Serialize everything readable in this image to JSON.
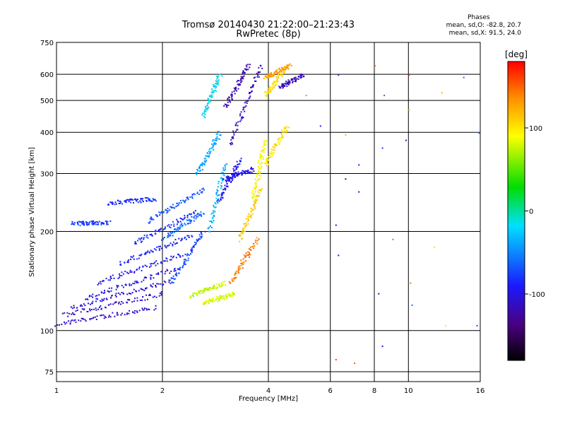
{
  "header": {
    "title_line1": "Tromsø 20140430 21:22:00–21:23:43",
    "title_line2": "RwPretec (8p)"
  },
  "phase_stats": {
    "title": "Phases",
    "line_o": "mean, sd,O:  -82.8, 20.7",
    "line_x": "mean, sd,X:  91.5, 24.0"
  },
  "colorbar": {
    "unit": "[deg]",
    "ticks": [
      {
        "value": 100,
        "label": "100"
      },
      {
        "value": 0,
        "label": "0"
      },
      {
        "value": -100,
        "label": "-100"
      }
    ],
    "range": [
      -180,
      180
    ]
  },
  "chart_data": {
    "type": "scatter",
    "title": "Tromsø 20140430 21:22:00–21:23:43",
    "subtitle": "RwPretec (8p)",
    "xlabel": "Frequency [MHz]",
    "ylabel": "Stationary phase Virtual Height [km]",
    "x_scale": "log",
    "y_scale": "log",
    "xlim": [
      1,
      16
    ],
    "ylim": [
      70,
      750
    ],
    "x_ticks": [
      1,
      2,
      4,
      6,
      8,
      10,
      16
    ],
    "x_tick_labels": [
      "1",
      "2",
      "4",
      "6",
      "8",
      "10",
      "16"
    ],
    "y_ticks": [
      75,
      100,
      200,
      300,
      400,
      500,
      600,
      750
    ],
    "y_tick_labels": [
      "75",
      "100",
      "200",
      "300",
      "400",
      "500",
      "600",
      "750"
    ],
    "grid": true,
    "series": [
      {
        "traces": [
          {
            "f": [
              1.0,
              1.9
            ],
            "h": [
              105,
              118
            ],
            "phase": -112
          },
          {
            "f": [
              1.05,
              2.0
            ],
            "h": [
              112,
              130
            ],
            "phase": -110
          },
          {
            "f": [
              1.1,
              2.1
            ],
            "h": [
              118,
              142
            ],
            "phase": -105
          },
          {
            "f": [
              1.2,
              2.2
            ],
            "h": [
              126,
              155
            ],
            "phase": -100
          },
          {
            "f": [
              1.3,
              2.3
            ],
            "h": [
              140,
              172
            ],
            "phase": -95
          },
          {
            "f": [
              1.5,
              2.4
            ],
            "h": [
              160,
              195
            ],
            "phase": -90
          },
          {
            "f": [
              1.65,
              2.5
            ],
            "h": [
              185,
              230
            ],
            "phase": -85
          },
          {
            "f": [
              1.8,
              2.6
            ],
            "h": [
              215,
              270
            ],
            "phase": -70
          },
          {
            "f": [
              1.1,
              1.4
            ],
            "h": [
              212,
              214
            ],
            "phase": -80
          },
          {
            "f": [
              1.4,
              1.9
            ],
            "h": [
              245,
              252
            ],
            "phase": -85
          },
          {
            "f": [
              2.0,
              2.6
            ],
            "h": [
              190,
              230
            ],
            "phase": -60
          },
          {
            "f": [
              2.1,
              2.6
            ],
            "h": [
              140,
              200
            ],
            "phase": -75
          },
          {
            "f": [
              2.5,
              2.9
            ],
            "h": [
              300,
              400
            ],
            "phase": -40
          },
          {
            "f": [
              2.6,
              2.9
            ],
            "h": [
              450,
              600
            ],
            "phase": -20
          },
          {
            "f": [
              2.7,
              3.0
            ],
            "h": [
              200,
              320
            ],
            "phase": -35
          },
          {
            "f": [
              2.9,
              3.3
            ],
            "h": [
              250,
              330
            ],
            "phase": -95
          },
          {
            "f": [
              3.0,
              3.5
            ],
            "h": [
              480,
              640
            ],
            "phase": -120
          },
          {
            "f": [
              3.1,
              3.8
            ],
            "h": [
              370,
              640
            ],
            "phase": -115
          },
          {
            "f": [
              3.0,
              3.6
            ],
            "h": [
              290,
              310
            ],
            "phase": -100
          },
          {
            "f": [
              2.4,
              3.0
            ],
            "h": [
              128,
              140
            ],
            "phase": 75
          },
          {
            "f": [
              2.6,
              3.2
            ],
            "h": [
              122,
              130
            ],
            "phase": 80
          },
          {
            "f": [
              3.1,
              3.7
            ],
            "h": [
              140,
              190
            ],
            "phase": 140
          },
          {
            "f": [
              3.3,
              3.8
            ],
            "h": [
              190,
              270
            ],
            "phase": 110
          },
          {
            "f": [
              3.6,
              3.9
            ],
            "h": [
              250,
              380
            ],
            "phase": 90
          },
          {
            "f": [
              3.9,
              4.5
            ],
            "h": [
              320,
              420
            ],
            "phase": 100
          },
          {
            "f": [
              3.9,
              4.5
            ],
            "h": [
              520,
              640
            ],
            "phase": 105
          },
          {
            "f": [
              4.3,
              5.0
            ],
            "h": [
              550,
              600
            ],
            "phase": -115
          },
          {
            "f": [
              3.9,
              4.6
            ],
            "h": [
              590,
              640
            ],
            "phase": 130
          }
        ],
        "points": [
          {
            "f": 6.2,
            "h": 82,
            "phase": 160
          },
          {
            "f": 6.3,
            "h": 170,
            "phase": -100
          },
          {
            "f": 6.2,
            "h": 210,
            "phase": -95
          },
          {
            "f": 6.3,
            "h": 600,
            "phase": -85
          },
          {
            "f": 6.6,
            "h": 395,
            "phase": 120
          },
          {
            "f": 6.6,
            "h": 290,
            "phase": -130
          },
          {
            "f": 7.2,
            "h": 320,
            "phase": -90
          },
          {
            "f": 7.2,
            "h": 265,
            "phase": -120
          },
          {
            "f": 7.0,
            "h": 80,
            "phase": 150
          },
          {
            "f": 8.0,
            "h": 640,
            "phase": 150
          },
          {
            "f": 8.2,
            "h": 130,
            "phase": -120
          },
          {
            "f": 8.4,
            "h": 90,
            "phase": -110
          },
          {
            "f": 8.4,
            "h": 360,
            "phase": -80
          },
          {
            "f": 8.5,
            "h": 520,
            "phase": -60
          },
          {
            "f": 9.0,
            "h": 190,
            "phase": 150
          },
          {
            "f": 10.0,
            "h": 600,
            "phase": 160
          },
          {
            "f": 10.0,
            "h": 470,
            "phase": 110
          },
          {
            "f": 9.8,
            "h": 380,
            "phase": -120
          },
          {
            "f": 10.1,
            "h": 140,
            "phase": 140
          },
          {
            "f": 10.2,
            "h": 120,
            "phase": -60
          },
          {
            "f": 11.8,
            "h": 180,
            "phase": 100
          },
          {
            "f": 12.4,
            "h": 530,
            "phase": 120
          },
          {
            "f": 12.7,
            "h": 104,
            "phase": 100
          },
          {
            "f": 14.3,
            "h": 590,
            "phase": -60
          },
          {
            "f": 15.6,
            "h": 104,
            "phase": -70
          },
          {
            "f": 15.8,
            "h": 400,
            "phase": -60
          },
          {
            "f": 5.6,
            "h": 420,
            "phase": -100
          },
          {
            "f": 5.1,
            "h": 520,
            "phase": 140
          }
        ]
      }
    ]
  }
}
